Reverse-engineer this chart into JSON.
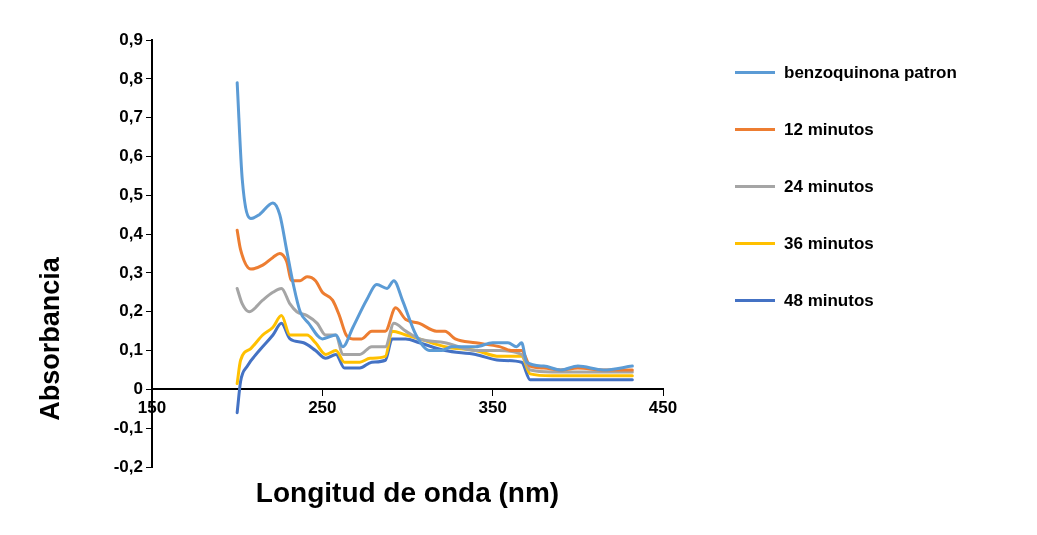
{
  "chart_data": {
    "type": "line",
    "xlabel": "Longitud de onda (nm)",
    "ylabel": "Absorbancia",
    "xlim": [
      150,
      450
    ],
    "xticks": [
      150,
      250,
      350,
      450
    ],
    "ylim": [
      -0.2,
      0.9
    ],
    "yticks": [
      {
        "value": -0.2,
        "label": "-0,2"
      },
      {
        "value": -0.1,
        "label": "-0,1"
      },
      0,
      {
        "value": 0.1,
        "label": "0,1"
      },
      {
        "value": 0.2,
        "label": "0,2"
      },
      {
        "value": 0.3,
        "label": "0,3"
      },
      {
        "value": 0.4,
        "label": "0,4"
      },
      {
        "value": 0.5,
        "label": "0,5"
      },
      {
        "value": 0.6,
        "label": "0,6"
      },
      {
        "value": 0.7,
        "label": "0,7"
      },
      {
        "value": 0.8,
        "label": "0,8"
      },
      {
        "value": 0.9,
        "label": "0,9"
      }
    ],
    "legend": "right",
    "marker": "none",
    "line_style": "solid",
    "series": [
      {
        "name": "benzoquinona patron",
        "color": "#5b9bd5",
        "x": [
          200,
          203,
          208,
          213,
          221,
          225,
          229,
          233,
          237,
          242,
          250,
          258,
          262,
          268,
          276,
          282,
          288,
          292,
          297,
          305,
          313,
          320,
          326,
          340,
          350,
          359,
          364,
          367,
          370,
          380,
          390,
          400,
          415,
          432
        ],
        "values": [
          0.79,
          0.54,
          0.44,
          0.45,
          0.48,
          0.45,
          0.36,
          0.27,
          0.2,
          0.17,
          0.13,
          0.14,
          0.11,
          0.16,
          0.23,
          0.27,
          0.26,
          0.28,
          0.23,
          0.14,
          0.1,
          0.1,
          0.11,
          0.11,
          0.12,
          0.12,
          0.11,
          0.12,
          0.07,
          0.06,
          0.05,
          0.06,
          0.05,
          0.06
        ]
      },
      {
        "name": "12 minutos",
        "color": "#ed7d31",
        "x": [
          200,
          202,
          208,
          215,
          221,
          225,
          229,
          232,
          237,
          241,
          246,
          250,
          256,
          260,
          264,
          268,
          273,
          279,
          287,
          293,
          299,
          307,
          317,
          322,
          328,
          340,
          354,
          361,
          367,
          372,
          380,
          390,
          400,
          415,
          432
        ],
        "values": [
          0.41,
          0.36,
          0.31,
          0.32,
          0.34,
          0.35,
          0.33,
          0.28,
          0.28,
          0.29,
          0.28,
          0.25,
          0.23,
          0.19,
          0.14,
          0.13,
          0.13,
          0.15,
          0.15,
          0.21,
          0.18,
          0.17,
          0.15,
          0.15,
          0.13,
          0.12,
          0.11,
          0.1,
          0.1,
          0.06,
          0.055,
          0.05,
          0.055,
          0.05,
          0.05
        ]
      },
      {
        "name": "24 minutos",
        "color": "#a5a5a5",
        "x": [
          200,
          203,
          207,
          215,
          221,
          226,
          231,
          235,
          241,
          247,
          252,
          258,
          262,
          272,
          279,
          287,
          292,
          299,
          307,
          322,
          340,
          354,
          367,
          372,
          385,
          400,
          415,
          432
        ],
        "values": [
          0.26,
          0.22,
          0.2,
          0.23,
          0.25,
          0.26,
          0.22,
          0.2,
          0.19,
          0.17,
          0.14,
          0.14,
          0.09,
          0.09,
          0.11,
          0.11,
          0.17,
          0.15,
          0.13,
          0.12,
          0.1,
          0.1,
          0.09,
          0.05,
          0.045,
          0.045,
          0.045,
          0.045
        ]
      },
      {
        "name": "36 minutos",
        "color": "#ffc000",
        "x": [
          200,
          202,
          208,
          215,
          221,
          226,
          231,
          237,
          241,
          246,
          252,
          258,
          263,
          272,
          278,
          287,
          291,
          299,
          307,
          322,
          340,
          354,
          367,
          372,
          385,
          400,
          415,
          432
        ],
        "values": [
          0.015,
          0.075,
          0.105,
          0.14,
          0.16,
          0.19,
          0.14,
          0.14,
          0.14,
          0.12,
          0.09,
          0.1,
          0.07,
          0.07,
          0.08,
          0.085,
          0.15,
          0.14,
          0.13,
          0.11,
          0.1,
          0.085,
          0.085,
          0.04,
          0.035,
          0.035,
          0.035,
          0.035
        ]
      },
      {
        "name": "48 minutos",
        "color": "#4472c4",
        "x": [
          200,
          202,
          206,
          213,
          221,
          226,
          231,
          239,
          246,
          252,
          258,
          263,
          272,
          279,
          287,
          291,
          299,
          307,
          322,
          340,
          354,
          367,
          372,
          385,
          400,
          415,
          432
        ],
        "values": [
          -0.06,
          0.02,
          0.06,
          0.1,
          0.14,
          0.17,
          0.13,
          0.12,
          0.1,
          0.08,
          0.09,
          0.055,
          0.055,
          0.07,
          0.075,
          0.13,
          0.13,
          0.12,
          0.1,
          0.09,
          0.075,
          0.07,
          0.025,
          0.025,
          0.025,
          0.025,
          0.025
        ]
      }
    ]
  }
}
